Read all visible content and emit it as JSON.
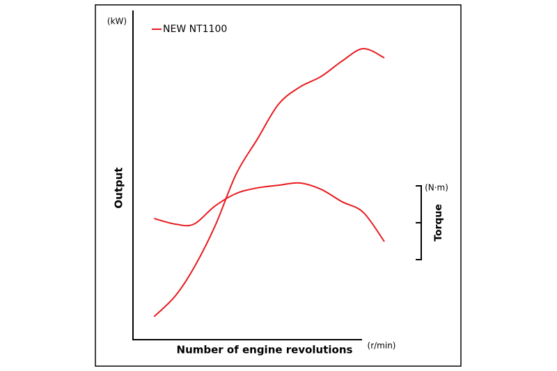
{
  "chart_data": {
    "type": "line",
    "y_unit": "(kW)",
    "y_label": "Output",
    "x_label": "Number of engine revolutions",
    "x_unit": "(r/min)",
    "y2_unit": "(N·m)",
    "y2_label": "Torque",
    "xlim": [
      0,
      100
    ],
    "ylim": [
      0,
      100
    ],
    "x": [
      8,
      16,
      23,
      31,
      39,
      47,
      55,
      63,
      71,
      79,
      87,
      95
    ],
    "series": [
      {
        "name": "NEW NT1100",
        "color": "#e8191e",
        "values": [
          7,
          13.3,
          21.8,
          34.5,
          50.3,
          60.9,
          71.5,
          76.7,
          79.9,
          84.6,
          88.4,
          85.6
        ]
      },
      {
        "color": "#e8191e",
        "values": [
          36.8,
          35.1,
          35.1,
          40.6,
          44.4,
          46.1,
          46.9,
          47.6,
          45.7,
          41.9,
          38.7,
          29.8
        ]
      }
    ]
  }
}
